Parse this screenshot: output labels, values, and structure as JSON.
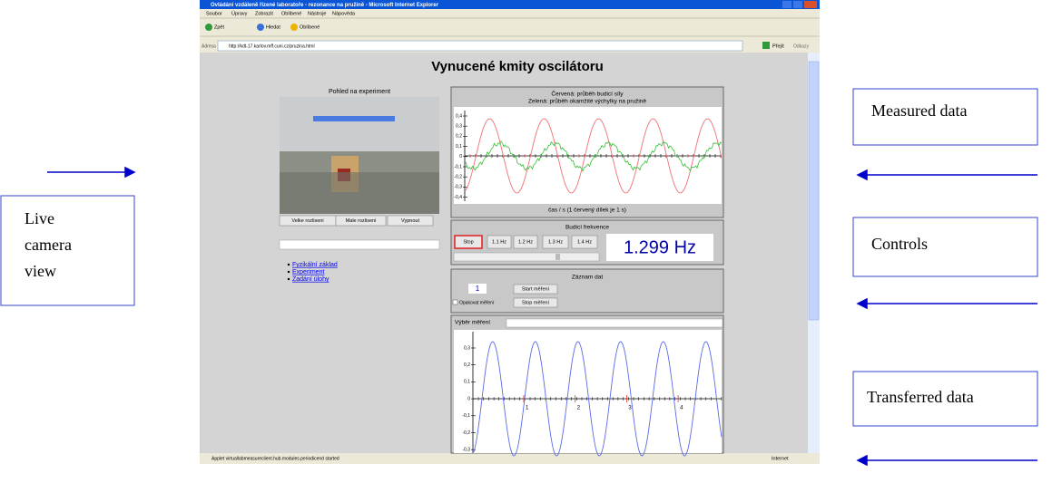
{
  "window": {
    "title": "Ovládání vzdáleně řízené laboratoře - rezonance na pružině - Microsoft Internet Explorer",
    "menu": [
      "Soubor",
      "Úpravy",
      "Zobrazit",
      "Oblíbené",
      "Nástroje",
      "Nápověda"
    ],
    "toolbar": [
      "Zpět",
      "Hledat",
      "Oblíbené"
    ],
    "address_label": "Adresa",
    "url": "http://kdt-17.karlov.mff.cuni.cz/pruzina.html",
    "go": "Přejít",
    "links": "Odkazy",
    "status": "Applet virtuallabmeasureclient.hub.modules.periodicend started",
    "zone": "Internet"
  },
  "page": {
    "heading": "Vynucené kmity oscilátoru",
    "camera": {
      "title": "Pohled na experiment",
      "buttons": [
        "Velke rozliseni",
        "Male rozliseni",
        "Vypnout"
      ]
    },
    "nav_links": [
      "Fyzikální základ",
      "Experiment",
      "Zadání úlohy"
    ],
    "measured_chart": {
      "legend": [
        "Červená: průběh budicí síly",
        "Zelená: průběh okamžité výchylky na pružině"
      ],
      "yticks": [
        "0,4",
        "0,3",
        "0,2",
        "0,1",
        "0",
        "-0,1",
        "-0,2",
        "-0,3",
        "-0,4"
      ],
      "xlabel": "čas / s (1 červený dílek je 1 s)"
    },
    "frequency": {
      "title": "Budicí frekvence",
      "buttons": [
        "Stop",
        "1.1 Hz",
        "1.2 Hz",
        "1.3 Hz",
        "1.4 Hz"
      ],
      "display": "1.299 Hz"
    },
    "recording": {
      "title": "Záznam dat",
      "count": "1",
      "start": "Start měření",
      "stop": "Stop měření",
      "repeat": "Opakovat měření"
    },
    "transferred_chart": {
      "select_label": "Výběr měření",
      "yticks": [
        "0,3",
        "0,2",
        "0,1",
        "0",
        "-0,1",
        "-0,2",
        "-0,3"
      ],
      "xticks": [
        "1",
        "2",
        "3",
        "4"
      ]
    }
  },
  "annotations": {
    "live_camera": [
      "Live",
      "camera",
      "view"
    ],
    "measured": "Measured data",
    "controls": "Controls",
    "transferred": "Transferred data"
  }
}
